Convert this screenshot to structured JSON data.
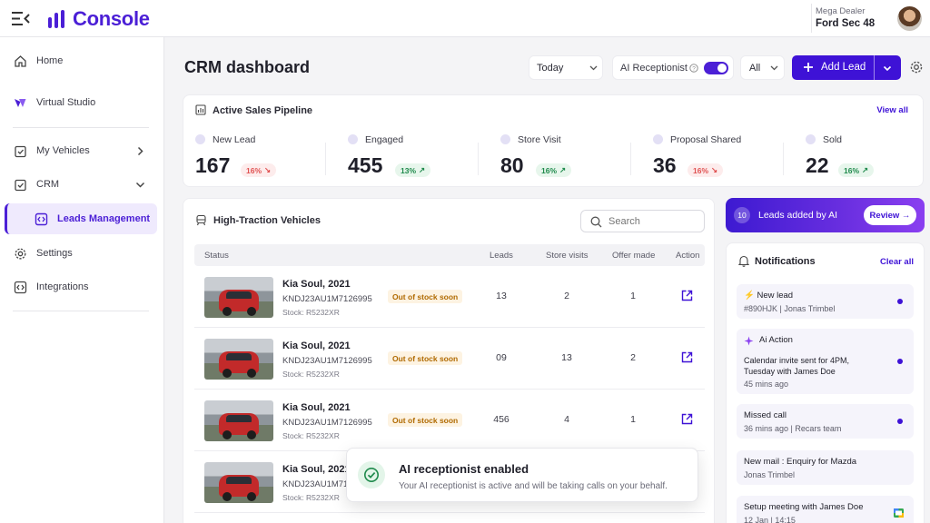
{
  "app": {
    "name": "Console"
  },
  "account": {
    "subtitle": "Mega Dealer",
    "name": "Ford Sec 48"
  },
  "sidebar": {
    "items": [
      {
        "label": "Home"
      },
      {
        "label": "Virtual Studio"
      },
      {
        "label": "My Vehicles"
      },
      {
        "label": "CRM"
      },
      {
        "label": "Leads Management"
      },
      {
        "label": "Settings"
      },
      {
        "label": "Integrations"
      }
    ]
  },
  "header": {
    "title": "CRM dashboard",
    "date_filter": "Today",
    "ai_receptionist_label": "AI Receptionist",
    "ai_receptionist_enabled": true,
    "scope_filter": "All",
    "add_lead_label": "Add Lead"
  },
  "pipeline": {
    "title": "Active Sales Pipeline",
    "view_all": "View all",
    "stages": [
      {
        "label": "New Lead",
        "value": "167",
        "change": "16%",
        "trend": "down"
      },
      {
        "label": "Engaged",
        "value": "455",
        "change": "13%",
        "trend": "up"
      },
      {
        "label": "Store Visit",
        "value": "80",
        "change": "16%",
        "trend": "up"
      },
      {
        "label": "Proposal Shared",
        "value": "36",
        "change": "16%",
        "trend": "down"
      },
      {
        "label": "Sold",
        "value": "22",
        "change": "16%",
        "trend": "up"
      }
    ]
  },
  "vehicles": {
    "title": "High-Traction Vehicles",
    "search_placeholder": "Search",
    "columns": [
      "Status",
      "Leads",
      "Store visits",
      "Offer made",
      "Action"
    ],
    "rows": [
      {
        "name": "Kia Soul, 2021",
        "vin": "KNDJ23AU1M7126995",
        "stock": "Stock: R5232XR",
        "status": "Out of stock soon",
        "leads": "13",
        "visits": "2",
        "offers": "1"
      },
      {
        "name": "Kia Soul, 2021",
        "vin": "KNDJ23AU1M7126995",
        "stock": "Stock: R5232XR",
        "status": "Out of stock soon",
        "leads": "09",
        "visits": "13",
        "offers": "2"
      },
      {
        "name": "Kia Soul, 2021",
        "vin": "KNDJ23AU1M7126995",
        "stock": "Stock: R5232XR",
        "status": "Out of stock soon",
        "leads": "456",
        "visits": "4",
        "offers": "1"
      },
      {
        "name": "Kia Soul, 2021",
        "vin": "KNDJ23AU1M712",
        "stock": "Stock: R5232XR",
        "status": "",
        "leads": "",
        "visits": "",
        "offers": ""
      }
    ]
  },
  "toast": {
    "title": "AI receptionist enabled",
    "message": "Your AI receptionist is active and will be taking calls on your behalf."
  },
  "leads_banner": {
    "count": "10",
    "label": "Leads added by AI",
    "action": "Review →"
  },
  "notifications": {
    "title": "Notifications",
    "clear_all": "Clear all",
    "items": [
      {
        "title": "⚡ New lead",
        "sub": "#890HJK | Jonas Trimbel"
      },
      {
        "title": "Ai Action",
        "body": "Calendar invite sent for 4PM, Tuesday with James Doe",
        "sub": "45 mins ago"
      },
      {
        "title": "Missed call",
        "sub": "36 mins ago | Recars team"
      },
      {
        "title": "New mail : Enquiry for Mazda",
        "sub": "Jonas Trimbel"
      },
      {
        "title": "Setup meeting with James Doe",
        "sub": "12 Jan | 14:15"
      }
    ]
  },
  "colors": {
    "accent": "#3e12d6",
    "brand": "#4b1fd6",
    "up": "#1f8a4c",
    "down": "#e05252",
    "warning": "#b06a00"
  }
}
